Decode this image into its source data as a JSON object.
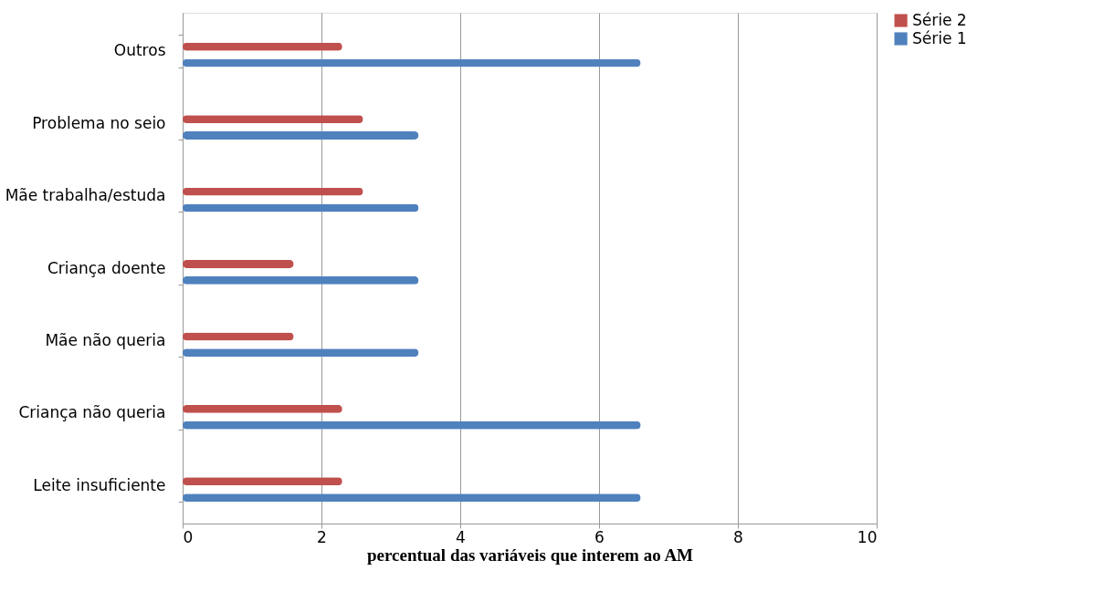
{
  "chart_data": {
    "type": "bar",
    "orientation": "horizontal",
    "xlabel": "percentual das variáveis que interem ao AM",
    "categories": [
      "Outros",
      "Problema no seio",
      "Mãe trabalha/estuda",
      "Criança doente",
      "Mãe não queria",
      "Criança não queria",
      "Leite insuficiente"
    ],
    "series": [
      {
        "name": "Série 2",
        "color": "#c0504d",
        "values": [
          2.3,
          2.6,
          2.6,
          1.6,
          1.6,
          2.3,
          2.3
        ]
      },
      {
        "name": "Série 1",
        "color": "#4f81bd",
        "values": [
          6.6,
          3.4,
          3.4,
          3.4,
          3.4,
          6.6,
          6.6
        ]
      }
    ],
    "xlim": [
      0,
      10
    ],
    "xticks": [
      0,
      2,
      4,
      6,
      8,
      10
    ],
    "grid": "x",
    "legend": "right"
  }
}
